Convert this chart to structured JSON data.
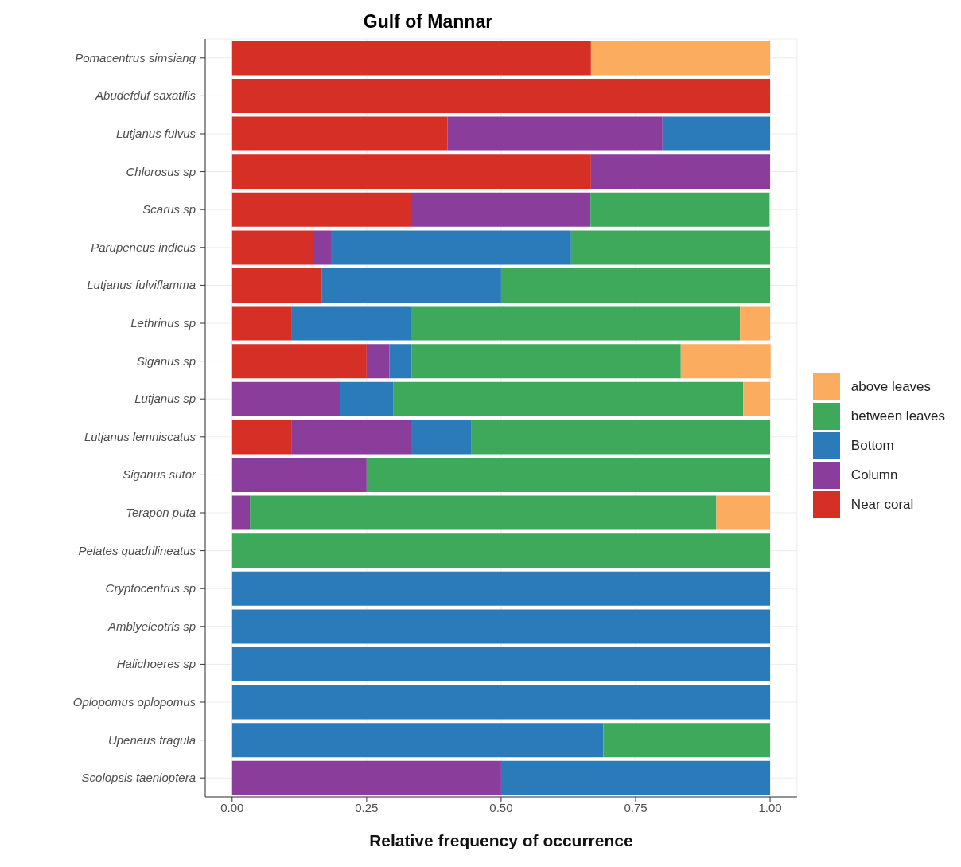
{
  "chart_data": {
    "type": "bar",
    "orientation": "horizontal",
    "stacked": true,
    "title": "Gulf of Mannar",
    "xlabel": "Relative frequency of occurrence",
    "categories": [
      "Pomacentrus simsiang",
      "Abudefduf saxatilis",
      "Lutjanus fulvus",
      "Chlorosus sp",
      "Scarus sp",
      "Parupeneus indicus",
      "Lutjanus fulviflamma",
      "Lethrinus sp",
      "Siganus sp",
      "Lutjanus sp",
      "Lutjanus lemniscatus",
      "Siganus sutor",
      "Terapon puta",
      "Pelates quadrilineatus",
      "Cryptocentrus sp",
      "Amblyeleotris sp",
      "Halichoeres sp",
      "Oplopomus oplopomus",
      "Upeneus tragula",
      "Scolopsis taenioptera"
    ],
    "series": [
      {
        "name": "Near coral",
        "color": "#d62f26",
        "values": [
          0.667,
          1,
          0.4,
          0.667,
          0.333,
          0.15,
          0.167,
          0.111,
          0.25,
          0,
          0.111,
          0,
          0,
          0,
          0,
          0,
          0,
          0,
          0,
          0
        ]
      },
      {
        "name": "Column",
        "color": "#8b3d9b",
        "values": [
          0,
          0,
          0.4,
          0.333,
          0.333,
          0.035,
          0,
          0,
          0.042,
          0.2,
          0.222,
          0.25,
          0.033,
          0,
          0,
          0,
          0,
          0,
          0,
          0.5
        ]
      },
      {
        "name": "Bottom",
        "color": "#2b7bba",
        "values": [
          0,
          0,
          0.2,
          0,
          0,
          0.445,
          0.333,
          0.222,
          0.042,
          0.1,
          0.111,
          0,
          0,
          0,
          1,
          1,
          1,
          1,
          0.69,
          0.5
        ]
      },
      {
        "name": "between leaves",
        "color": "#3ea95b",
        "values": [
          0,
          0,
          0,
          0,
          0.333,
          0.37,
          0.5,
          0.611,
          0.5,
          0.65,
          0.556,
          0.75,
          0.867,
          1,
          0,
          0,
          0,
          0,
          0.31,
          0
        ]
      },
      {
        "name": "above leaves",
        "color": "#fcac5f",
        "values": [
          0.333,
          0,
          0,
          0,
          0,
          0,
          0,
          0.056,
          0.167,
          0.05,
          0,
          0,
          0.1,
          0,
          0,
          0,
          0,
          0,
          0,
          0
        ]
      }
    ],
    "xlim": [
      -0.05,
      1.05
    ],
    "xticks": [
      {
        "value": 0,
        "label": "0.00"
      },
      {
        "value": 0.25,
        "label": "0.25"
      },
      {
        "value": 0.5,
        "label": "0.50"
      },
      {
        "value": 0.75,
        "label": "0.75"
      },
      {
        "value": 1,
        "label": "1.00"
      }
    ],
    "grid": true,
    "legend": "right"
  }
}
